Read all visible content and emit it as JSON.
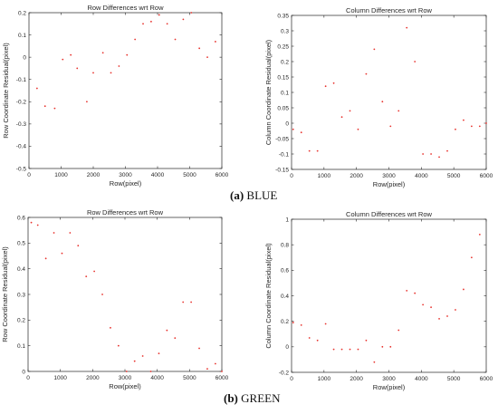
{
  "captions": [
    {
      "letter": "(a)",
      "text": "BLUE"
    },
    {
      "letter": "(b)",
      "text": "GREEN"
    }
  ],
  "colors": {
    "points": "#e8332e",
    "axes": "#262626",
    "text": "#262626"
  },
  "chart_data": [
    {
      "type": "scatter",
      "title": "Row Differences wrt Row",
      "xlabel": "Row(pixel)",
      "ylabel": "Row Coordinate Residual(pixel)",
      "xlim": [
        0,
        6000
      ],
      "ylim": [
        -0.5,
        0.2
      ],
      "xticks": [
        0,
        1000,
        2000,
        3000,
        4000,
        5000,
        6000
      ],
      "yticks": [
        -0.5,
        -0.4,
        -0.3,
        -0.2,
        -0.1,
        0,
        0.1,
        0.2
      ],
      "grid": false,
      "x": [
        250,
        500,
        800,
        1050,
        1300,
        1500,
        1800,
        2000,
        2300,
        2550,
        2800,
        3050,
        3300,
        3550,
        3800,
        4050,
        4300,
        4550,
        4800,
        5050,
        5300,
        5550,
        5800
      ],
      "y": [
        -0.14,
        -0.22,
        -0.23,
        -0.01,
        0.01,
        -0.05,
        -0.2,
        -0.07,
        0.02,
        -0.07,
        -0.04,
        0.01,
        0.08,
        0.15,
        0.16,
        0.19,
        0.15,
        0.08,
        0.17,
        0.2,
        0.04,
        0.0,
        0.07
      ]
    },
    {
      "type": "scatter",
      "title": "Column Differences wrt Row",
      "xlabel": "Row(pixel)",
      "ylabel": "Column Coordinate Residual(pixel)",
      "xlim": [
        0,
        6000
      ],
      "ylim": [
        -0.15,
        0.35
      ],
      "xticks": [
        0,
        1000,
        2000,
        3000,
        4000,
        5000,
        6000
      ],
      "yticks": [
        -0.15,
        -0.1,
        -0.05,
        0,
        0.05,
        0.1,
        0.15,
        0.2,
        0.25,
        0.3,
        0.35
      ],
      "grid": false,
      "x": [
        50,
        300,
        550,
        800,
        1050,
        1300,
        1550,
        1800,
        2050,
        2300,
        2550,
        2800,
        3050,
        3300,
        3550,
        3800,
        4050,
        4300,
        4550,
        4800,
        5050,
        5300,
        5550,
        5800,
        6000
      ],
      "y": [
        -0.02,
        -0.03,
        -0.09,
        -0.09,
        0.12,
        0.13,
        0.02,
        0.04,
        -0.02,
        0.16,
        0.24,
        0.07,
        -0.01,
        0.04,
        0.31,
        0.2,
        -0.1,
        -0.1,
        -0.11,
        -0.09,
        -0.02,
        0.01,
        -0.01,
        -0.01,
        0.0
      ]
    },
    {
      "type": "scatter",
      "title": "Row Differences wrt Row",
      "xlabel": "Row(pixel)",
      "ylabel": "Row Coordinate Residual(pixel)",
      "xlim": [
        0,
        6000
      ],
      "ylim": [
        0,
        0.6
      ],
      "xticks": [
        0,
        1000,
        2000,
        3000,
        4000,
        5000,
        6000
      ],
      "yticks": [
        0,
        0.1,
        0.2,
        0.3,
        0.4,
        0.5,
        0.6
      ],
      "grid": false,
      "x": [
        100,
        300,
        550,
        800,
        1050,
        1300,
        1550,
        1800,
        2050,
        2300,
        2550,
        2800,
        3050,
        3300,
        3550,
        3800,
        4050,
        4300,
        4550,
        4800,
        5050,
        5300,
        5550,
        5800,
        6000
      ],
      "y": [
        0.58,
        0.57,
        0.44,
        0.54,
        0.46,
        0.54,
        0.49,
        0.37,
        0.39,
        0.3,
        0.17,
        0.1,
        0.0,
        0.04,
        0.06,
        0.0,
        0.07,
        0.16,
        0.13,
        0.27,
        0.27,
        0.09,
        0.01,
        0.03,
        0.0
      ]
    },
    {
      "type": "scatter",
      "title": "Column Differences wrt Row",
      "xlabel": "Row(pixel)",
      "ylabel": "Column Coordinate Residual(pixel)",
      "xlim": [
        0,
        6000
      ],
      "ylim": [
        -0.2,
        1.0
      ],
      "xticks": [
        0,
        1000,
        2000,
        3000,
        4000,
        5000,
        6000
      ],
      "yticks": [
        -0.2,
        0,
        0.2,
        0.4,
        0.6,
        0.8,
        1
      ],
      "grid": false,
      "x": [
        50,
        300,
        550,
        800,
        1050,
        1300,
        1550,
        1800,
        2050,
        2300,
        2550,
        2800,
        3050,
        3300,
        3550,
        3800,
        4050,
        4300,
        4550,
        4800,
        5050,
        5300,
        5550,
        5800
      ],
      "y": [
        0.19,
        0.17,
        0.07,
        0.05,
        0.18,
        -0.02,
        -0.02,
        -0.02,
        -0.02,
        0.05,
        -0.12,
        0.0,
        0.0,
        0.13,
        0.44,
        0.42,
        0.33,
        0.31,
        0.22,
        0.24,
        0.29,
        0.45,
        0.7,
        0.88
      ]
    }
  ]
}
